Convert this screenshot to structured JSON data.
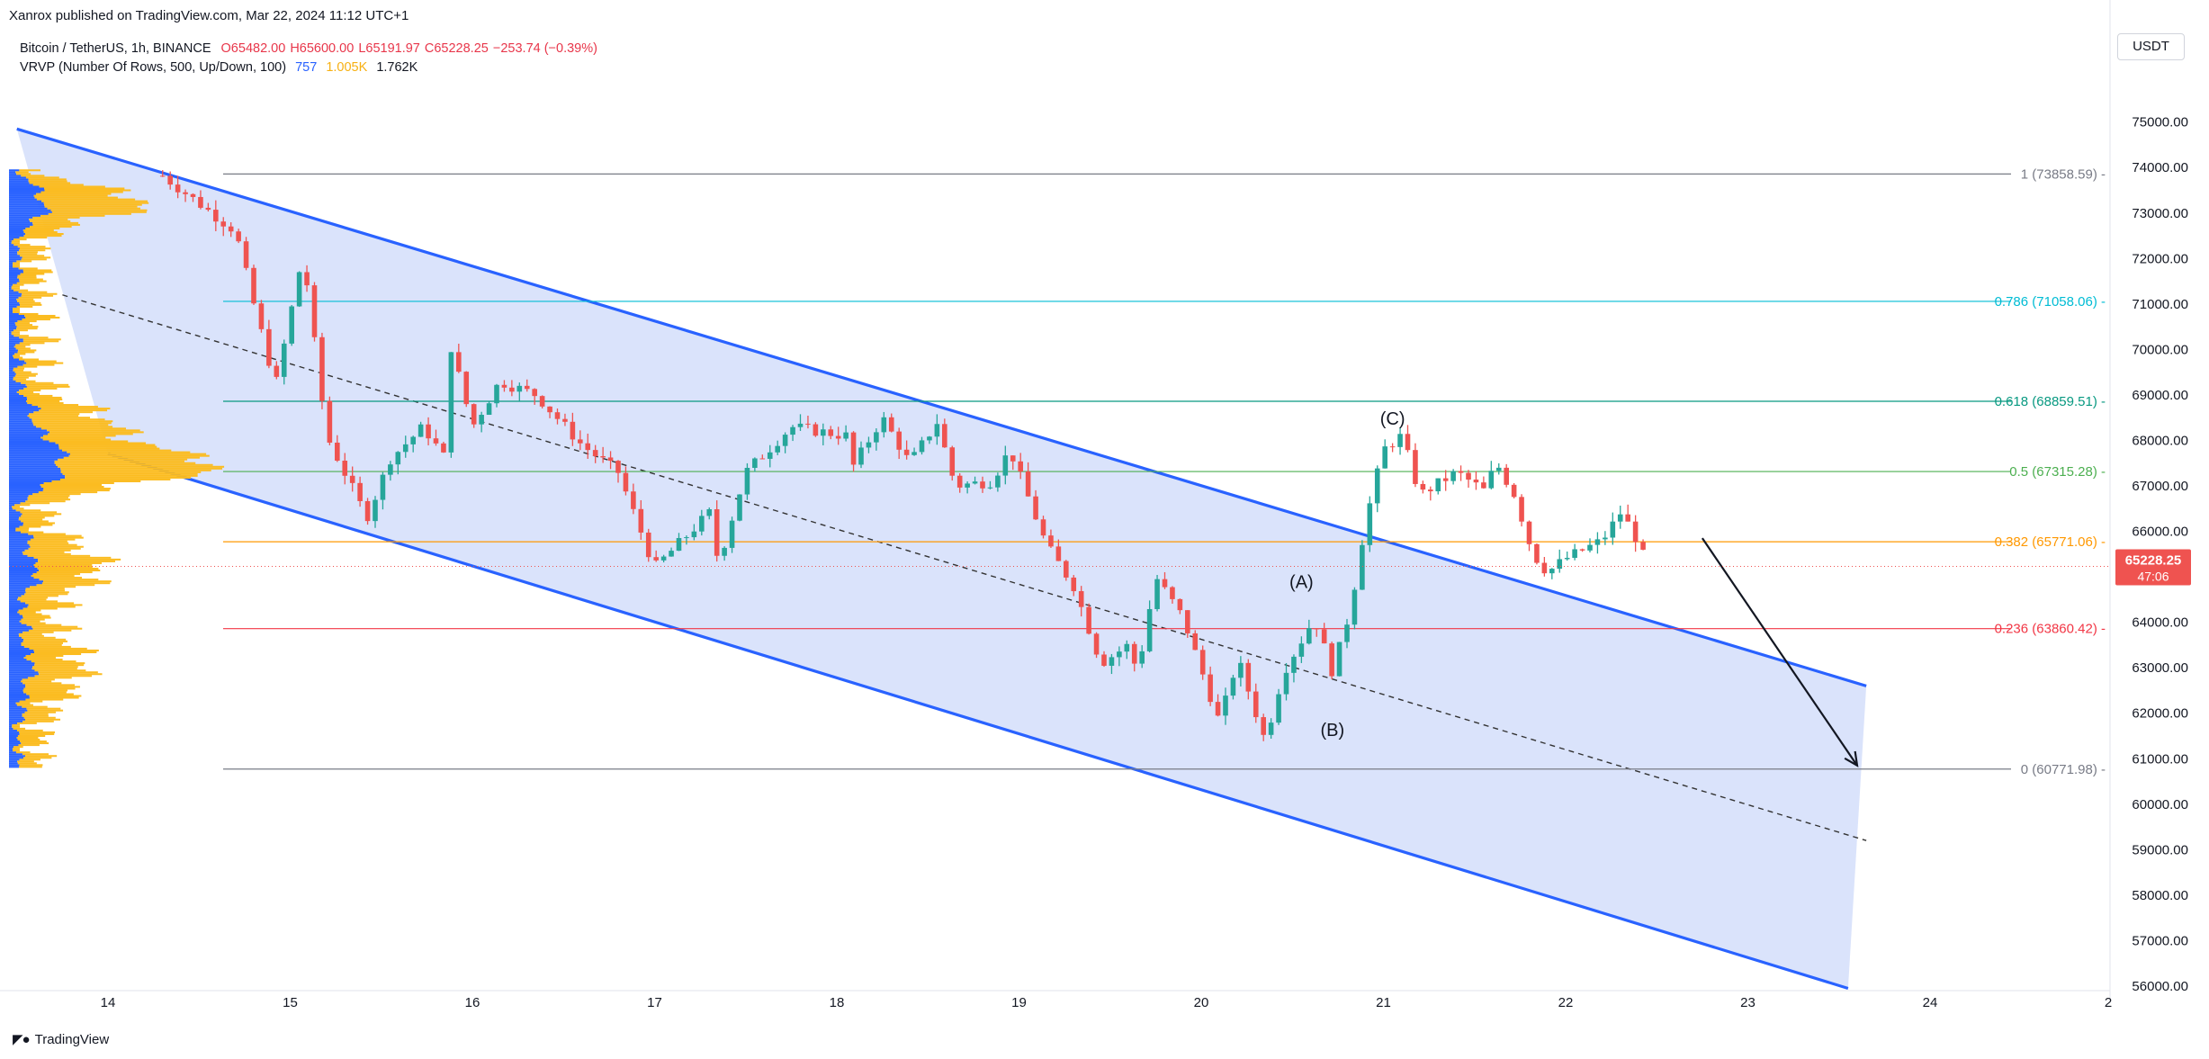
{
  "header": {
    "published": "Xanrox published on TradingView.com, Mar 22, 2024 11:12 UTC+1",
    "symbol": "Bitcoin / TetherUS, 1h, BINANCE",
    "ohlc": {
      "open": "O65482.00",
      "high": "H65600.00",
      "low": "L65191.97",
      "close": "C65228.25",
      "change": "−253.74 (−0.39%)"
    },
    "indicator_label": "VRVP (Number Of Rows, 500, Up/Down, 100)",
    "indicator_values": [
      "757",
      "1.005K",
      "1.762K"
    ],
    "currency_button": "USDT"
  },
  "footer": {
    "brand": "TradingView"
  },
  "colors": {
    "up": "#26a69a",
    "down": "#ef5350",
    "channel_line": "#2962ff",
    "channel_fill": "#d8e2fb",
    "vp_up": "#2962ff",
    "vp_down": "#fbbc21",
    "price_badge": "#ef5350"
  },
  "chart_data": {
    "type": "candlestick",
    "instrument": "Bitcoin / TetherUS",
    "timeframe": "1h",
    "exchange": "BINANCE",
    "y_ticks": [
      56000,
      57000,
      58000,
      59000,
      60000,
      61000,
      62000,
      63000,
      64000,
      65000,
      66000,
      67000,
      68000,
      69000,
      70000,
      71000,
      72000,
      73000,
      74000,
      75000
    ],
    "x_ticks": [
      "14",
      "15",
      "16",
      "17",
      "18",
      "19",
      "20",
      "21",
      "22",
      "23",
      "24",
      "2"
    ],
    "ylim": [
      55900,
      76300
    ],
    "last_price": {
      "value": "65228.25",
      "countdown": "47:06"
    },
    "fibonacci": [
      {
        "level": "1",
        "price": 73858.59,
        "label": "1 (73858.59)",
        "color": "#787b86"
      },
      {
        "level": "0.786",
        "price": 71058.06,
        "label": "0.786 (71058.06)",
        "color": "#00bcd4"
      },
      {
        "level": "0.618",
        "price": 68859.51,
        "label": "0.618 (68859.51)",
        "color": "#089981"
      },
      {
        "level": "0.5",
        "price": 67315.28,
        "label": "0.5 (67315.28)",
        "color": "#4caf50"
      },
      {
        "level": "0.382",
        "price": 65771.06,
        "label": "0.382 (65771.06)",
        "color": "#ff9800"
      },
      {
        "level": "0.236",
        "price": 63860.42,
        "label": "0.236 (63860.42)",
        "color": "#f23645"
      },
      {
        "level": "0",
        "price": 60771.98,
        "label": "0 (60771.98)",
        "color": "#787b86"
      }
    ],
    "wave_labels": [
      {
        "text": "(A)",
        "day": 20.55,
        "price": 64750
      },
      {
        "text": "(B)",
        "day": 20.72,
        "price": 61500
      },
      {
        "text": "(C)",
        "day": 21.05,
        "price": 68350
      }
    ],
    "channel": {
      "upper": [
        [
          13.5,
          74850
        ],
        [
          23.65,
          62600
        ]
      ],
      "middle": [
        [
          13.75,
          71200
        ],
        [
          23.65,
          59200
        ]
      ],
      "lower": [
        [
          14.0,
          67700
        ],
        [
          23.55,
          55950
        ]
      ]
    },
    "projection_arrow": [
      [
        22.75,
        65850
      ],
      [
        23.6,
        60850
      ]
    ],
    "anchors": [
      {
        "day": 14.3,
        "price": 73820
      },
      {
        "day": 14.7,
        "price": 72600
      },
      {
        "day": 14.8,
        "price": 71000
      },
      {
        "day": 14.92,
        "price": 69200
      },
      {
        "day": 15.07,
        "price": 72100
      },
      {
        "day": 15.2,
        "price": 68100
      },
      {
        "day": 15.42,
        "price": 66300
      },
      {
        "day": 15.55,
        "price": 67600
      },
      {
        "day": 15.73,
        "price": 68300
      },
      {
        "day": 15.85,
        "price": 67600
      },
      {
        "day": 15.88,
        "price": 70100
      },
      {
        "day": 16.0,
        "price": 68300
      },
      {
        "day": 16.15,
        "price": 69300
      },
      {
        "day": 16.35,
        "price": 69000
      },
      {
        "day": 16.6,
        "price": 67900
      },
      {
        "day": 16.8,
        "price": 67300
      },
      {
        "day": 17.0,
        "price": 65200
      },
      {
        "day": 17.3,
        "price": 66400
      },
      {
        "day": 17.35,
        "price": 65300
      },
      {
        "day": 17.5,
        "price": 67300
      },
      {
        "day": 17.75,
        "price": 68300
      },
      {
        "day": 18.05,
        "price": 68100
      },
      {
        "day": 18.07,
        "price": 67300
      },
      {
        "day": 18.25,
        "price": 68500
      },
      {
        "day": 18.4,
        "price": 67500
      },
      {
        "day": 18.55,
        "price": 68400
      },
      {
        "day": 18.65,
        "price": 67000
      },
      {
        "day": 18.85,
        "price": 67100
      },
      {
        "day": 18.95,
        "price": 67800
      },
      {
        "day": 19.15,
        "price": 65700
      },
      {
        "day": 19.3,
        "price": 64800
      },
      {
        "day": 19.45,
        "price": 63100
      },
      {
        "day": 19.6,
        "price": 63500
      },
      {
        "day": 19.65,
        "price": 62900
      },
      {
        "day": 19.75,
        "price": 65000
      },
      {
        "day": 19.9,
        "price": 64100
      },
      {
        "day": 20.1,
        "price": 61800
      },
      {
        "day": 20.2,
        "price": 63200
      },
      {
        "day": 20.35,
        "price": 61400
      },
      {
        "day": 20.45,
        "price": 62900
      },
      {
        "day": 20.55,
        "price": 63600
      },
      {
        "day": 20.62,
        "price": 64100
      },
      {
        "day": 20.72,
        "price": 62900
      },
      {
        "day": 20.82,
        "price": 64300
      },
      {
        "day": 20.9,
        "price": 66200
      },
      {
        "day": 21.0,
        "price": 67800
      },
      {
        "day": 21.1,
        "price": 68100
      },
      {
        "day": 21.2,
        "price": 66800
      },
      {
        "day": 21.4,
        "price": 67300
      },
      {
        "day": 21.55,
        "price": 66900
      },
      {
        "day": 21.62,
        "price": 67500
      },
      {
        "day": 21.72,
        "price": 66800
      },
      {
        "day": 21.82,
        "price": 65500
      },
      {
        "day": 21.9,
        "price": 65100
      },
      {
        "day": 22.0,
        "price": 65400
      },
      {
        "day": 22.1,
        "price": 65600
      },
      {
        "day": 22.2,
        "price": 65800
      },
      {
        "day": 22.3,
        "price": 66400
      },
      {
        "day": 22.37,
        "price": 66000
      },
      {
        "day": 22.45,
        "price": 65230
      }
    ]
  }
}
